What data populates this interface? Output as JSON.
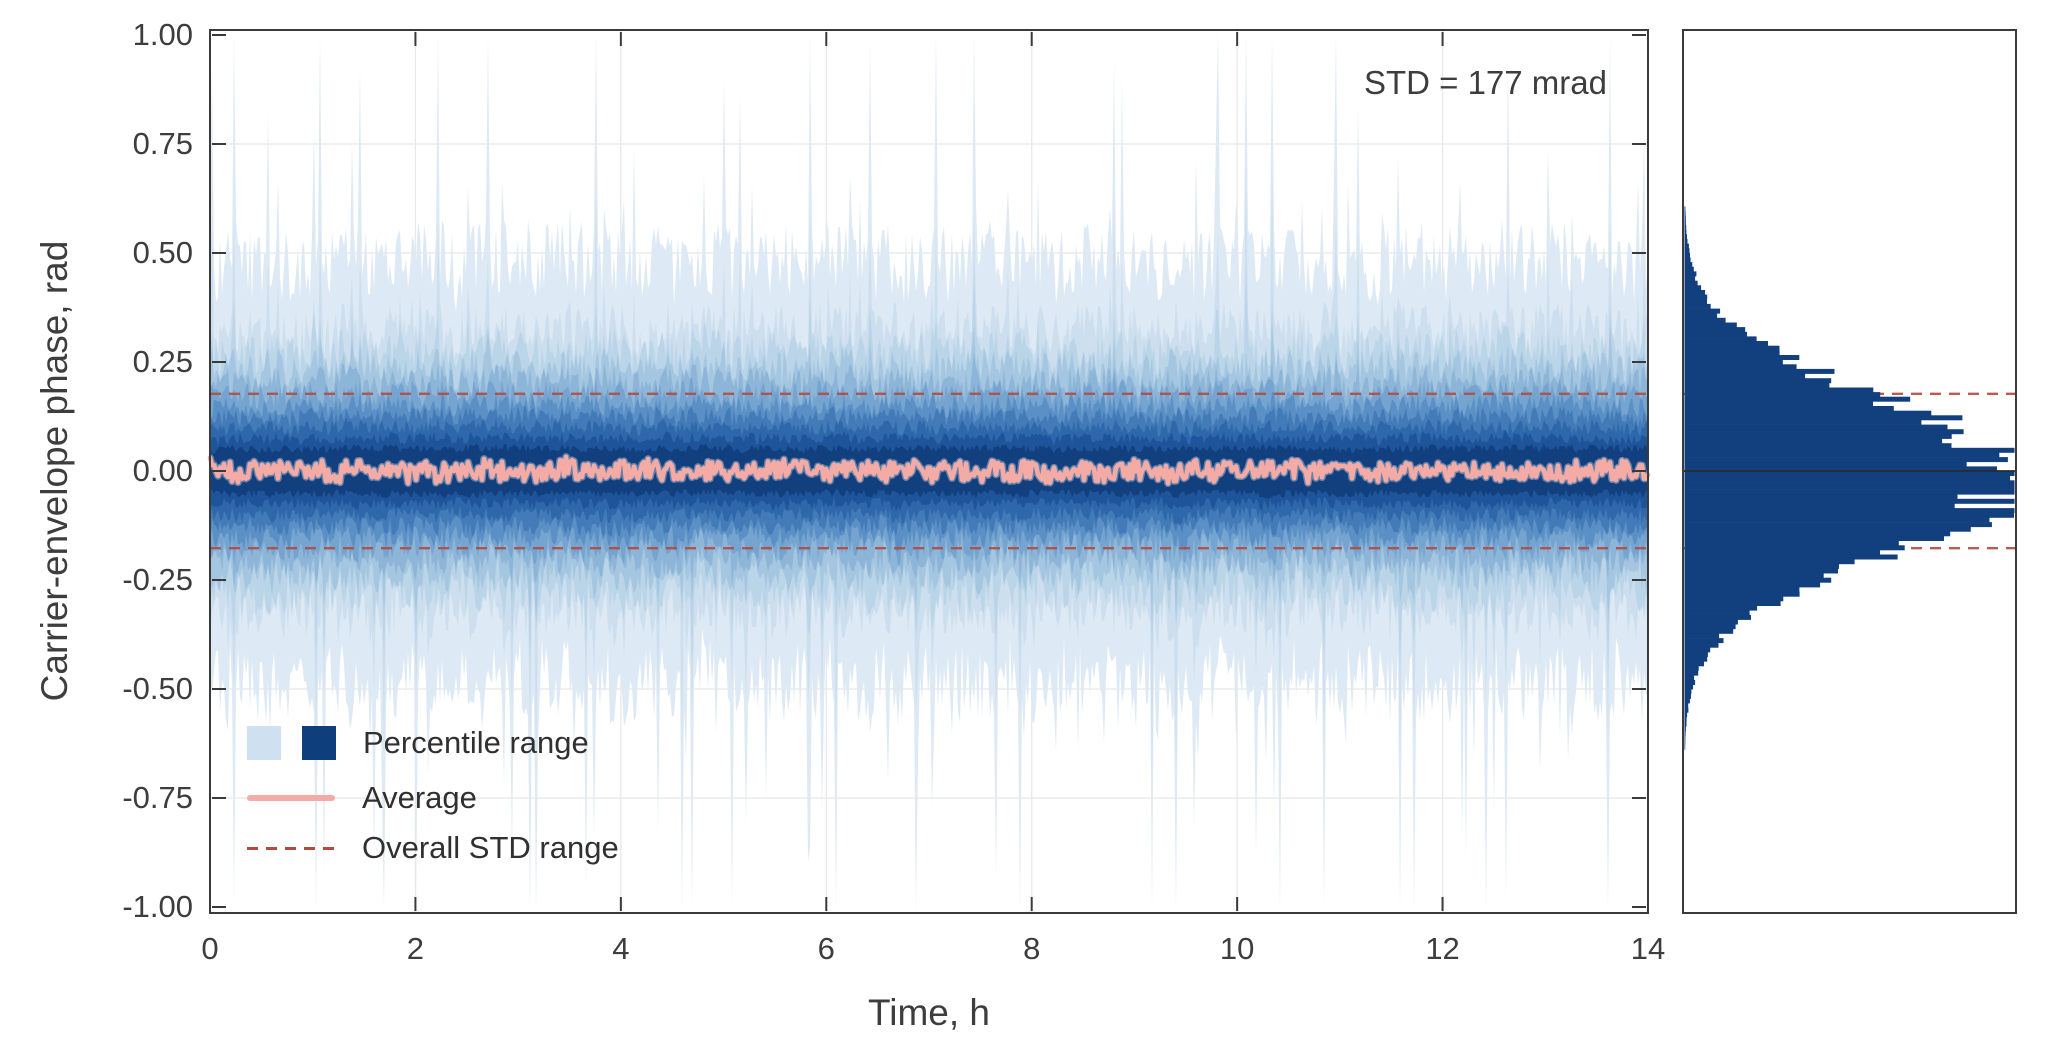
{
  "figure": {
    "background": "#ffffff",
    "axis_color": "#3a3a3a",
    "grid_color": "#e8e8e8",
    "text_color": "#3d3d3d"
  },
  "legend": {
    "items": [
      {
        "label": "Percentile range",
        "type": "swatches",
        "colors": [
          "#cfe0f0",
          "#0f3e7c"
        ]
      },
      {
        "label": "Average",
        "type": "line",
        "color": "#f5aba5"
      },
      {
        "label": "Overall STD range",
        "type": "dashed-line",
        "color": "#b34a3e"
      }
    ]
  },
  "chart_data": [
    {
      "type": "area",
      "subtype": "percentile-fan-chart",
      "annotation": "STD = 177 mrad",
      "xlabel": "Time, h",
      "ylabel": "Carrier-envelope phase, rad",
      "xlim": [
        0,
        14
      ],
      "ylim": [
        -1.03,
        1.03
      ],
      "xticks": [
        0,
        2,
        4,
        6,
        8,
        10,
        12,
        14
      ],
      "xtick_labels": [
        "0",
        "2",
        "4",
        "6",
        "8",
        "10",
        "12",
        "14"
      ],
      "yticks": [
        1.0,
        0.75,
        0.5,
        0.25,
        0.0,
        -0.25,
        -0.5,
        -0.75,
        -1.0
      ],
      "ytick_labels": [
        "1.00",
        "0.75",
        "0.50",
        "0.25",
        "0.00",
        "-0.25",
        "-0.50",
        "-0.75",
        "-1.00"
      ],
      "grid": true,
      "std_mrad": 177,
      "std_lines": [
        0.177,
        -0.177
      ],
      "std_line_color": "#b34a3e",
      "average": {
        "mean": 0.0,
        "amplitude": 0.085,
        "color": "#f5aba5"
      },
      "n_samples": 720,
      "noise_seed": 13,
      "bands": [
        {
          "half_width": 0.5,
          "spike": 1.0,
          "color": "#dde9f4"
        },
        {
          "half_width": 0.335,
          "spike": 0.45,
          "color": "#cddfee"
        },
        {
          "half_width": 0.285,
          "spike": 0.2,
          "color": "#bad4e8"
        },
        {
          "half_width": 0.245,
          "spike": 0.1,
          "color": "#a5c6e1"
        },
        {
          "half_width": 0.212,
          "spike": 0.05,
          "color": "#8db5d8"
        },
        {
          "half_width": 0.183,
          "spike": 0.02,
          "color": "#74a4cf"
        },
        {
          "half_width": 0.156,
          "spike": 0.0,
          "color": "#5a90c5"
        },
        {
          "half_width": 0.13,
          "spike": 0.0,
          "color": "#437bb8"
        },
        {
          "half_width": 0.104,
          "spike": 0.0,
          "color": "#2f68aa"
        },
        {
          "half_width": 0.078,
          "spike": 0.0,
          "color": "#1e559a"
        },
        {
          "half_width": 0.054,
          "spike": 0.0,
          "color": "#123f7e"
        }
      ]
    },
    {
      "type": "histogram",
      "orientation": "horizontal",
      "mean": -0.012,
      "std": 0.177,
      "range": [
        -0.66,
        0.66
      ],
      "bins": 124,
      "color": "#123f7d",
      "zero_line": 0.0,
      "zero_line_color": "#2b2b2b",
      "std_lines": [
        0.177,
        -0.177
      ],
      "std_line_color": "#b34a3e"
    }
  ]
}
